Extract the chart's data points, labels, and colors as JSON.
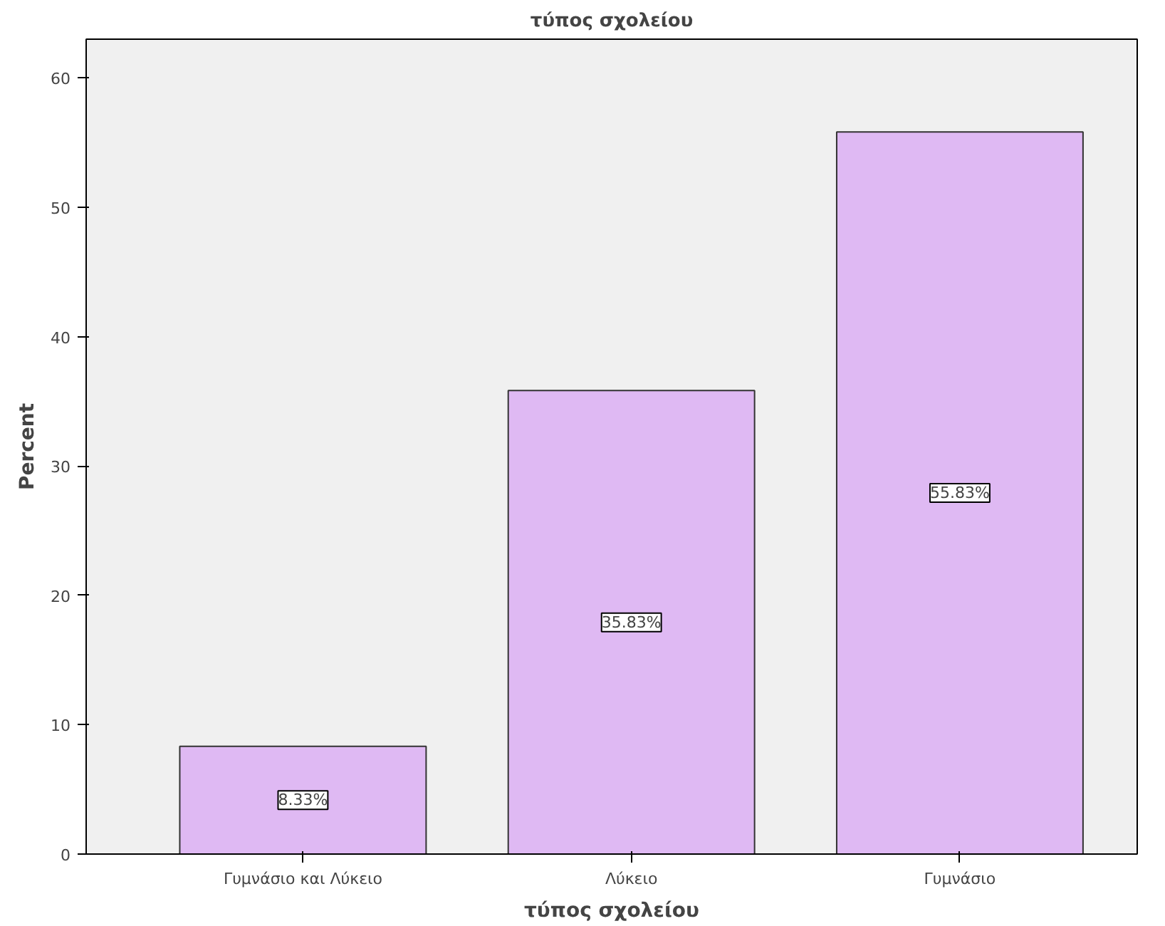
{
  "chart_data": {
    "type": "bar",
    "title": "τύπος σχολείου",
    "xlabel": "τύπος σχολείου",
    "ylabel": "Percent",
    "categories": [
      "Γυμνάσιο και Λύκειο",
      "Λύκειο",
      "Γυμνάσιο"
    ],
    "values": [
      8.33,
      35.83,
      55.83
    ],
    "value_labels": [
      "8.33%",
      "35.83%",
      "55.83%"
    ],
    "color": "#dfb9f3",
    "ylim": [
      0,
      63
    ],
    "yticks": [
      0,
      10,
      20,
      30,
      40,
      50,
      60
    ],
    "grid": false
  }
}
